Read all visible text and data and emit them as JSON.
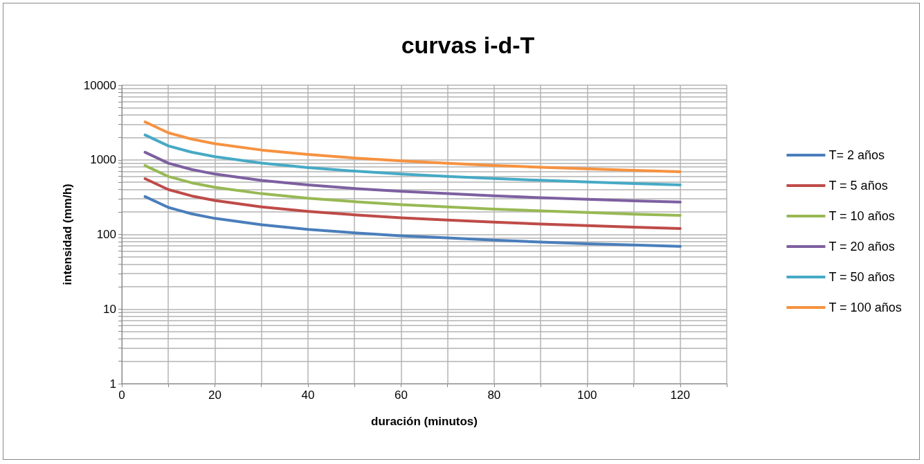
{
  "chart_data": {
    "type": "line",
    "title": "curvas i-d-T",
    "xlabel": "duración (minutos)",
    "ylabel": "intensidad (mm/h)",
    "x": [
      5,
      10,
      15,
      20,
      30,
      40,
      50,
      60,
      70,
      80,
      90,
      100,
      110,
      120
    ],
    "series": [
      {
        "name": "T= 2 años",
        "color": "#4a7ebb",
        "values": [
          321,
          230,
          189,
          164,
          135,
          117,
          105,
          96,
          90,
          84,
          79,
          75,
          72,
          69
        ]
      },
      {
        "name": "T = 5 años",
        "color": "#be4b48",
        "values": [
          558,
          399,
          328,
          285,
          234,
          204,
          183,
          167,
          156,
          146,
          138,
          131,
          125,
          120
        ]
      },
      {
        "name": "T = 10 años",
        "color": "#98b954",
        "values": [
          837,
          598,
          492,
          428,
          352,
          306,
          275,
          251,
          234,
          218,
          207,
          197,
          187,
          180
        ]
      },
      {
        "name": "T = 20 años",
        "color": "#7d60a0",
        "values": [
          1260,
          901,
          741,
          644,
          529,
          461,
          413,
          378,
          352,
          329,
          311,
          296,
          282,
          271
        ]
      },
      {
        "name": "T = 50 años",
        "color": "#46aac5",
        "values": [
          2150,
          1537,
          1264,
          1099,
          903,
          787,
          705,
          645,
          600,
          561,
          531,
          505,
          482,
          462
        ]
      },
      {
        "name": "T = 100 años",
        "color": "#f69240",
        "values": [
          3220,
          2302,
          1893,
          1645,
          1352,
          1179,
          1056,
          966,
          898,
          840,
          795,
          757,
          721,
          692
        ]
      }
    ],
    "xlim": [
      0,
      130
    ],
    "xticks": [
      0,
      {
        "value": 10,
        "label": null
      },
      20,
      {
        "value": 30,
        "label": null
      },
      40,
      {
        "value": 50,
        "label": null
      },
      60,
      {
        "value": 70,
        "label": null
      },
      80,
      {
        "value": 90,
        "label": null
      },
      100,
      {
        "value": 110,
        "label": null
      },
      120,
      {
        "value": 130,
        "label": null
      }
    ],
    "ylim": [
      1,
      10000
    ],
    "yticks": [
      1,
      {
        "value": 2,
        "label": null
      },
      {
        "value": 3,
        "label": null
      },
      {
        "value": 4,
        "label": null
      },
      {
        "value": 5,
        "label": null
      },
      {
        "value": 6,
        "label": null
      },
      {
        "value": 7,
        "label": null
      },
      {
        "value": 8,
        "label": null
      },
      {
        "value": 9,
        "label": null
      },
      10,
      {
        "value": 20,
        "label": null
      },
      {
        "value": 30,
        "label": null
      },
      {
        "value": 40,
        "label": null
      },
      {
        "value": 50,
        "label": null
      },
      {
        "value": 60,
        "label": null
      },
      {
        "value": 70,
        "label": null
      },
      {
        "value": 80,
        "label": null
      },
      {
        "value": 90,
        "label": null
      },
      100,
      {
        "value": 200,
        "label": null
      },
      {
        "value": 300,
        "label": null
      },
      {
        "value": 400,
        "label": null
      },
      {
        "value": 500,
        "label": null
      },
      {
        "value": 600,
        "label": null
      },
      {
        "value": 700,
        "label": null
      },
      {
        "value": 800,
        "label": null
      },
      {
        "value": 900,
        "label": null
      },
      1000,
      {
        "value": 2000,
        "label": null
      },
      {
        "value": 3000,
        "label": null
      },
      {
        "value": 4000,
        "label": null
      },
      {
        "value": 5000,
        "label": null
      },
      {
        "value": 6000,
        "label": null
      },
      {
        "value": 7000,
        "label": null
      },
      {
        "value": 8000,
        "label": null
      },
      {
        "value": 9000,
        "label": null
      },
      10000
    ],
    "log": "y",
    "grid": true,
    "legend": "right",
    "marker": "none",
    "line_style": "solid"
  }
}
